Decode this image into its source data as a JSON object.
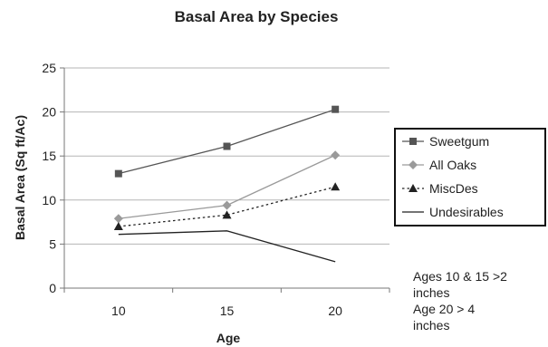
{
  "chart_data": {
    "type": "line",
    "title": "Basal Area by Species",
    "xlabel": "Age",
    "ylabel": "Basal Area (Sq ft/Ac)",
    "x": [
      10,
      15,
      20
    ],
    "ylim": [
      0,
      25
    ],
    "yticks": [
      0,
      5,
      10,
      15,
      20,
      25
    ],
    "grid": true,
    "legend_position": "right",
    "series": [
      {
        "name": "Sweetgum",
        "values": [
          13.0,
          16.1,
          20.3
        ],
        "marker": "square",
        "line": "solid",
        "color": "#555555"
      },
      {
        "name": "All Oaks",
        "values": [
          7.9,
          9.4,
          15.1
        ],
        "marker": "diamond",
        "line": "solid",
        "color": "#9a9a9a"
      },
      {
        "name": "MiscDes",
        "values": [
          7.0,
          8.3,
          11.5
        ],
        "marker": "triangle",
        "line": "dotted",
        "color": "#222222"
      },
      {
        "name": "Undesirables",
        "values": [
          6.1,
          6.5,
          3.0
        ],
        "marker": "none",
        "line": "solid",
        "color": "#222222"
      }
    ]
  },
  "note": {
    "lines": [
      "Ages 10 & 15 >2",
      "inches",
      "Age 20 > 4",
      "inches"
    ]
  }
}
